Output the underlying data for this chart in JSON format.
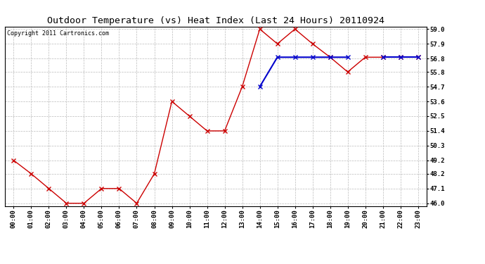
{
  "title": "Outdoor Temperature (vs) Heat Index (Last 24 Hours) 20110924",
  "copyright": "Copyright 2011 Cartronics.com",
  "x_labels": [
    "00:00",
    "01:00",
    "02:00",
    "03:00",
    "04:00",
    "05:00",
    "06:00",
    "07:00",
    "08:00",
    "09:00",
    "10:00",
    "11:00",
    "12:00",
    "13:00",
    "14:00",
    "15:00",
    "16:00",
    "17:00",
    "18:00",
    "19:00",
    "20:00",
    "21:00",
    "22:00",
    "23:00"
  ],
  "temp_data": [
    49.2,
    48.2,
    47.1,
    46.0,
    46.0,
    47.1,
    47.1,
    46.0,
    48.2,
    53.6,
    52.5,
    51.4,
    51.4,
    54.7,
    59.0,
    57.9,
    59.0,
    57.9,
    56.9,
    55.8,
    56.9,
    56.9,
    56.9,
    56.9
  ],
  "heat_data": [
    null,
    null,
    null,
    null,
    null,
    null,
    null,
    null,
    null,
    null,
    null,
    null,
    null,
    null,
    54.7,
    56.9,
    56.9,
    56.9,
    56.9,
    56.9,
    null,
    56.9,
    56.9,
    56.9
  ],
  "temp_color": "#cc0000",
  "heat_color": "#0000cc",
  "bg_color": "#ffffff",
  "grid_color": "#bbbbbb",
  "ylim_min": 45.8,
  "ylim_max": 59.2,
  "yticks": [
    46.0,
    47.1,
    48.2,
    49.2,
    50.3,
    51.4,
    52.5,
    53.6,
    54.7,
    55.8,
    56.8,
    57.9,
    59.0
  ],
  "ytick_labels": [
    "46.0",
    "47.1",
    "48.2",
    "49.2",
    "50.3",
    "51.4",
    "52.5",
    "53.6",
    "54.7",
    "55.8",
    "56.8",
    "57.9",
    "59.0"
  ],
  "title_fontsize": 9.5,
  "copyright_fontsize": 6,
  "tick_fontsize": 6.5,
  "marker": "x",
  "linewidth": 1.0,
  "markersize": 4
}
